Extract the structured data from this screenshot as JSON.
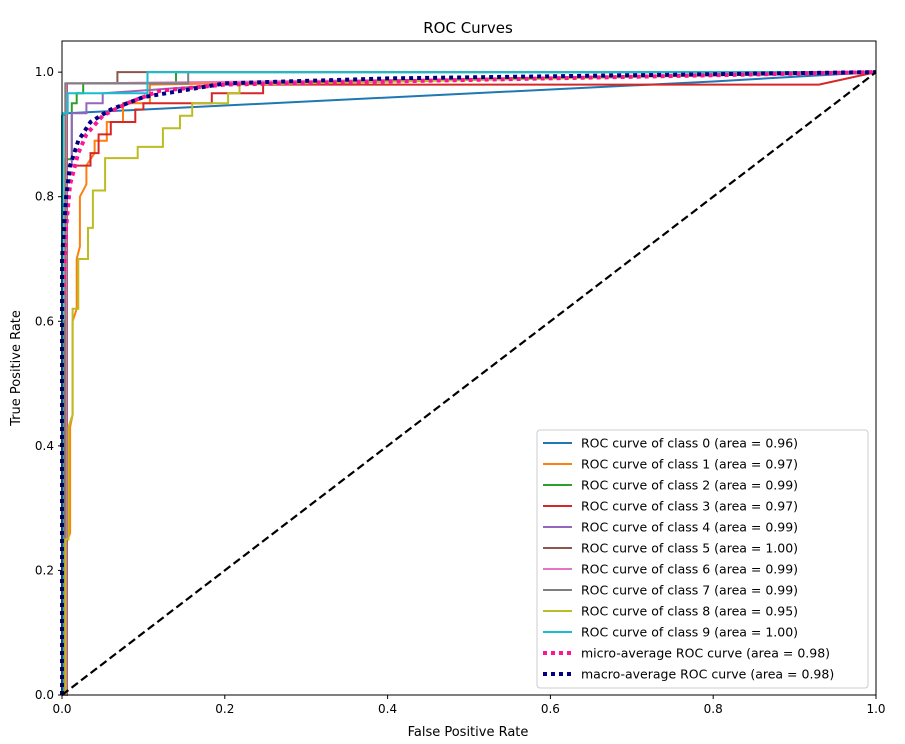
{
  "chart_data": {
    "type": "line",
    "title": "ROC Curves",
    "xlabel": "False Positive Rate",
    "ylabel": "True Positive Rate",
    "xlim": [
      0.0,
      1.0
    ],
    "ylim": [
      0.0,
      1.05
    ],
    "xticks": [
      "0.0",
      "0.2",
      "0.4",
      "0.6",
      "0.8",
      "1.0"
    ],
    "yticks": [
      "0.0",
      "0.2",
      "0.4",
      "0.6",
      "0.8",
      "1.0"
    ],
    "grid": false,
    "legend_position": "lower-right",
    "series": [
      {
        "name": "ROC curve of class 0 (area = 0.96)",
        "color": "#1f77b4",
        "style": "solid",
        "x": [
          0,
          0,
          0.006,
          0.8,
          1
        ],
        "y": [
          0,
          0.93,
          0.934,
          0.985,
          1
        ]
      },
      {
        "name": "ROC curve of class 1 (area = 0.97)",
        "color": "#ff7f0e",
        "style": "solid",
        "x": [
          0,
          0.004,
          0.004,
          0.01,
          0.01,
          0.013,
          0.013,
          0.018,
          0.018,
          0.022,
          0.022,
          0.03,
          0.03,
          0.04,
          0.04,
          0.055,
          0.055,
          0.075,
          0.075,
          0.108,
          0.108,
          1
        ],
        "y": [
          0,
          0,
          0.24,
          0.26,
          0.43,
          0.45,
          0.6,
          0.62,
          0.7,
          0.72,
          0.8,
          0.82,
          0.85,
          0.87,
          0.89,
          0.89,
          0.92,
          0.92,
          0.95,
          0.95,
          0.98,
          1
        ]
      },
      {
        "name": "ROC curve of class 2 (area = 0.99)",
        "color": "#2ca02c",
        "style": "solid",
        "x": [
          0,
          0.004,
          0.004,
          0.012,
          0.012,
          0.018,
          0.018,
          0.026,
          0.026,
          0.14,
          0.14,
          1
        ],
        "y": [
          0,
          0,
          0.86,
          0.86,
          0.95,
          0.95,
          0.966,
          0.966,
          0.982,
          0.982,
          1,
          1
        ]
      },
      {
        "name": "ROC curve of class 3 (area = 0.97)",
        "color": "#d62728",
        "style": "solid",
        "x": [
          0,
          0.003,
          0.003,
          0.005,
          0.005,
          0.035,
          0.035,
          0.045,
          0.045,
          0.06,
          0.06,
          0.09,
          0.09,
          0.1,
          0.1,
          0.184,
          0.184,
          0.247,
          0.247,
          0.93,
          1
        ],
        "y": [
          0,
          0,
          0.6,
          0.6,
          0.85,
          0.85,
          0.87,
          0.87,
          0.9,
          0.9,
          0.92,
          0.92,
          0.94,
          0.94,
          0.95,
          0.95,
          0.966,
          0.966,
          0.98,
          0.98,
          1
        ]
      },
      {
        "name": "ROC curve of class 4 (area = 0.99)",
        "color": "#9467bd",
        "style": "solid",
        "x": [
          0,
          0.005,
          0.005,
          0.012,
          0.012,
          0.03,
          0.03,
          0.05,
          0.05,
          0.2,
          1
        ],
        "y": [
          0,
          0,
          0.85,
          0.85,
          0.934,
          0.934,
          0.95,
          0.95,
          0.966,
          0.98,
          1
        ]
      },
      {
        "name": "ROC curve of class 5 (area = 1.00)",
        "color": "#8c564b",
        "style": "solid",
        "x": [
          0,
          0.006,
          0.006,
          0.068,
          0.068,
          1
        ],
        "y": [
          0,
          0,
          0.982,
          0.982,
          1,
          1
        ]
      },
      {
        "name": "ROC curve of class 6 (area = 0.99)",
        "color": "#e377c2",
        "style": "solid",
        "x": [
          0,
          0.005,
          0.005,
          0.02,
          0.6,
          1
        ],
        "y": [
          0,
          0,
          0.982,
          0.982,
          0.99,
          1
        ]
      },
      {
        "name": "ROC curve of class 7 (area = 0.99)",
        "color": "#7f7f7f",
        "style": "solid",
        "x": [
          0,
          0.004,
          0.004,
          0.155,
          0.155,
          1
        ],
        "y": [
          0,
          0,
          0.982,
          0.982,
          1,
          1
        ]
      },
      {
        "name": "ROC curve of class 8 (area = 0.95)",
        "color": "#bcbd22",
        "style": "solid",
        "x": [
          0,
          0.004,
          0.004,
          0.008,
          0.008,
          0.013,
          0.013,
          0.02,
          0.02,
          0.032,
          0.032,
          0.038,
          0.038,
          0.053,
          0.053,
          0.093,
          0.093,
          0.124,
          0.124,
          0.145,
          0.145,
          0.16,
          0.16,
          0.204,
          0.204,
          0.218,
          0.218,
          1
        ],
        "y": [
          0,
          0,
          0.25,
          0.25,
          0.43,
          0.45,
          0.62,
          0.62,
          0.7,
          0.7,
          0.75,
          0.75,
          0.81,
          0.81,
          0.862,
          0.862,
          0.88,
          0.88,
          0.91,
          0.91,
          0.93,
          0.93,
          0.95,
          0.95,
          0.966,
          0.966,
          0.98,
          1
        ]
      },
      {
        "name": "ROC curve of class 9 (area = 1.00)",
        "color": "#17becf",
        "style": "solid",
        "x": [
          0,
          0.001,
          0.001,
          0.007,
          0.007,
          0.105,
          0.105,
          1
        ],
        "y": [
          0,
          0,
          0.934,
          0.934,
          0.966,
          0.966,
          1,
          1
        ]
      },
      {
        "name": "micro-average ROC curve (area = 0.98)",
        "color": "#ff1493",
        "style": "dotted",
        "x": [
          0,
          0,
          0.005,
          0.01,
          0.02,
          0.03,
          0.05,
          0.08,
          0.12,
          0.2,
          0.4,
          1
        ],
        "y": [
          0,
          0.6,
          0.75,
          0.82,
          0.87,
          0.9,
          0.93,
          0.95,
          0.97,
          0.98,
          0.985,
          1
        ]
      },
      {
        "name": "macro-average ROC curve (area = 0.98)",
        "color": "#000080",
        "style": "dotted",
        "x": [
          0,
          0,
          0.005,
          0.01,
          0.02,
          0.035,
          0.06,
          0.1,
          0.2,
          0.4,
          1
        ],
        "y": [
          0,
          0.7,
          0.8,
          0.85,
          0.89,
          0.92,
          0.94,
          0.96,
          0.982,
          0.99,
          1
        ]
      }
    ],
    "reference_line": {
      "x": [
        0,
        1
      ],
      "y": [
        0,
        1
      ],
      "color": "#000000",
      "style": "dashed"
    }
  }
}
